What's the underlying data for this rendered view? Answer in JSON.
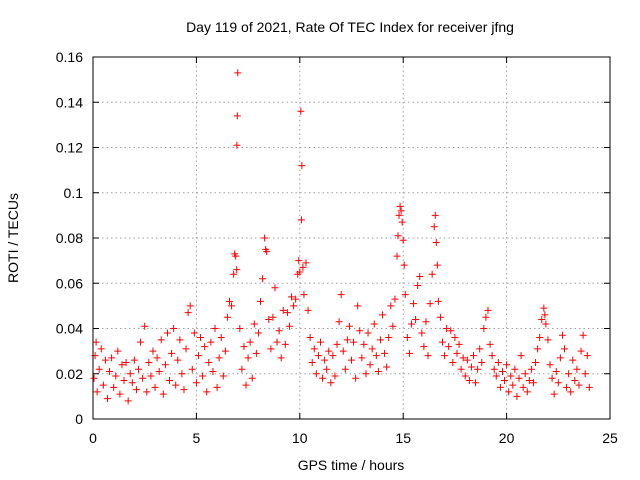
{
  "chart_data": {
    "type": "scatter",
    "title": "Day 119 of 2021, Rate Of TEC Index for receiver jfng",
    "xlabel": "GPS time / hours",
    "ylabel": "ROTI / TECUs",
    "xlim": [
      0,
      25
    ],
    "ylim": [
      0,
      0.16
    ],
    "xticks": [
      0,
      5,
      10,
      15,
      20,
      25
    ],
    "xtick_labels": [
      "0",
      "5",
      "10",
      "15",
      "20",
      "25"
    ],
    "yticks": [
      0,
      0.02,
      0.04,
      0.06,
      0.08,
      0.1,
      0.12,
      0.14,
      0.16
    ],
    "ytick_labels": [
      "0",
      "0.02",
      "0.04",
      "0.06",
      "0.08",
      "0.1",
      "0.12",
      "0.14",
      "0.16"
    ],
    "grid": true,
    "marker": "+",
    "color": "#ff0000",
    "series": [
      {
        "name": "ROTI",
        "points": [
          [
            0.05,
            0.018
          ],
          [
            0.1,
            0.028
          ],
          [
            0.15,
            0.034
          ],
          [
            0.2,
            0.012
          ],
          [
            0.3,
            0.022
          ],
          [
            0.4,
            0.031
          ],
          [
            0.5,
            0.015
          ],
          [
            0.6,
            0.026
          ],
          [
            0.7,
            0.009
          ],
          [
            0.8,
            0.021
          ],
          [
            0.9,
            0.027
          ],
          [
            1.0,
            0.014
          ],
          [
            1.1,
            0.019
          ],
          [
            1.2,
            0.03
          ],
          [
            1.3,
            0.011
          ],
          [
            1.4,
            0.024
          ],
          [
            1.5,
            0.017
          ],
          [
            1.6,
            0.025
          ],
          [
            1.7,
            0.008
          ],
          [
            1.8,
            0.02
          ],
          [
            1.9,
            0.016
          ],
          [
            2.0,
            0.026
          ],
          [
            2.1,
            0.013
          ],
          [
            2.2,
            0.022
          ],
          [
            2.3,
            0.034
          ],
          [
            2.4,
            0.018
          ],
          [
            2.5,
            0.041
          ],
          [
            2.6,
            0.012
          ],
          [
            2.7,
            0.025
          ],
          [
            2.8,
            0.019
          ],
          [
            2.9,
            0.03
          ],
          [
            3.0,
            0.014
          ],
          [
            3.1,
            0.027
          ],
          [
            3.2,
            0.021
          ],
          [
            3.3,
            0.035
          ],
          [
            3.4,
            0.011
          ],
          [
            3.5,
            0.024
          ],
          [
            3.6,
            0.038
          ],
          [
            3.7,
            0.017
          ],
          [
            3.8,
            0.029
          ],
          [
            3.9,
            0.04
          ],
          [
            4.0,
            0.015
          ],
          [
            4.1,
            0.026
          ],
          [
            4.2,
            0.035
          ],
          [
            4.3,
            0.02
          ],
          [
            4.4,
            0.013
          ],
          [
            4.5,
            0.031
          ],
          [
            4.6,
            0.047
          ],
          [
            4.7,
            0.05
          ],
          [
            4.8,
            0.022
          ],
          [
            4.9,
            0.038
          ],
          [
            5.0,
            0.016
          ],
          [
            5.1,
            0.028
          ],
          [
            5.2,
            0.036
          ],
          [
            5.3,
            0.019
          ],
          [
            5.4,
            0.032
          ],
          [
            5.5,
            0.012
          ],
          [
            5.6,
            0.025
          ],
          [
            5.7,
            0.034
          ],
          [
            5.8,
            0.021
          ],
          [
            5.9,
            0.04
          ],
          [
            6.0,
            0.014
          ],
          [
            6.1,
            0.027
          ],
          [
            6.2,
            0.036
          ],
          [
            6.3,
            0.019
          ],
          [
            6.4,
            0.03
          ],
          [
            6.5,
            0.045
          ],
          [
            6.6,
            0.052
          ],
          [
            6.7,
            0.05
          ],
          [
            6.8,
            0.064
          ],
          [
            6.85,
            0.073
          ],
          [
            6.9,
            0.072
          ],
          [
            6.95,
            0.066
          ],
          [
            7.0,
            0.153
          ],
          [
            6.98,
            0.134
          ],
          [
            6.96,
            0.121
          ],
          [
            7.1,
            0.04
          ],
          [
            7.2,
            0.022
          ],
          [
            7.3,
            0.032
          ],
          [
            7.4,
            0.015
          ],
          [
            7.5,
            0.027
          ],
          [
            7.6,
            0.034
          ],
          [
            7.7,
            0.018
          ],
          [
            7.8,
            0.042
          ],
          [
            7.9,
            0.029
          ],
          [
            8.0,
            0.038
          ],
          [
            8.1,
            0.052
          ],
          [
            8.2,
            0.062
          ],
          [
            8.3,
            0.08
          ],
          [
            8.35,
            0.075
          ],
          [
            8.4,
            0.074
          ],
          [
            8.5,
            0.044
          ],
          [
            8.6,
            0.031
          ],
          [
            8.7,
            0.045
          ],
          [
            8.8,
            0.058
          ],
          [
            8.9,
            0.034
          ],
          [
            9.0,
            0.039
          ],
          [
            9.1,
            0.027
          ],
          [
            9.2,
            0.048
          ],
          [
            9.3,
            0.033
          ],
          [
            9.4,
            0.047
          ],
          [
            9.5,
            0.041
          ],
          [
            9.6,
            0.054
          ],
          [
            9.7,
            0.05
          ],
          [
            9.8,
            0.053
          ],
          [
            9.9,
            0.064
          ],
          [
            9.95,
            0.07
          ],
          [
            10.0,
            0.065
          ],
          [
            10.05,
            0.136
          ],
          [
            10.1,
            0.112
          ],
          [
            10.08,
            0.088
          ],
          [
            10.15,
            0.067
          ],
          [
            10.2,
            0.055
          ],
          [
            10.3,
            0.069
          ],
          [
            10.4,
            0.048
          ],
          [
            10.5,
            0.036
          ],
          [
            10.6,
            0.025
          ],
          [
            10.7,
            0.031
          ],
          [
            10.8,
            0.02
          ],
          [
            10.9,
            0.028
          ],
          [
            11.0,
            0.034
          ],
          [
            11.1,
            0.018
          ],
          [
            11.2,
            0.026
          ],
          [
            11.3,
            0.022
          ],
          [
            11.4,
            0.03
          ],
          [
            11.5,
            0.016
          ],
          [
            11.6,
            0.028
          ],
          [
            11.7,
            0.019
          ],
          [
            11.8,
            0.033
          ],
          [
            11.9,
            0.043
          ],
          [
            12.0,
            0.055
          ],
          [
            12.1,
            0.03
          ],
          [
            12.2,
            0.022
          ],
          [
            12.3,
            0.035
          ],
          [
            12.4,
            0.041
          ],
          [
            12.5,
            0.026
          ],
          [
            12.6,
            0.034
          ],
          [
            12.7,
            0.018
          ],
          [
            12.8,
            0.05
          ],
          [
            12.9,
            0.039
          ],
          [
            13.0,
            0.027
          ],
          [
            13.1,
            0.033
          ],
          [
            13.2,
            0.02
          ],
          [
            13.3,
            0.038
          ],
          [
            13.4,
            0.024
          ],
          [
            13.5,
            0.031
          ],
          [
            13.6,
            0.042
          ],
          [
            13.7,
            0.028
          ],
          [
            13.8,
            0.021
          ],
          [
            13.9,
            0.035
          ],
          [
            14.0,
            0.046
          ],
          [
            14.1,
            0.029
          ],
          [
            14.2,
            0.023
          ],
          [
            14.3,
            0.036
          ],
          [
            14.4,
            0.05
          ],
          [
            14.5,
            0.041
          ],
          [
            14.6,
            0.053
          ],
          [
            14.7,
            0.072
          ],
          [
            14.75,
            0.081
          ],
          [
            14.8,
            0.09
          ],
          [
            14.85,
            0.094
          ],
          [
            14.9,
            0.092
          ],
          [
            14.95,
            0.087
          ],
          [
            15.0,
            0.079
          ],
          [
            15.05,
            0.068
          ],
          [
            15.1,
            0.055
          ],
          [
            15.2,
            0.036
          ],
          [
            15.3,
            0.029
          ],
          [
            15.4,
            0.042
          ],
          [
            15.5,
            0.051
          ],
          [
            15.6,
            0.044
          ],
          [
            15.7,
            0.059
          ],
          [
            15.8,
            0.063
          ],
          [
            15.9,
            0.038
          ],
          [
            16.0,
            0.032
          ],
          [
            16.1,
            0.043
          ],
          [
            16.2,
            0.028
          ],
          [
            16.3,
            0.051
          ],
          [
            16.4,
            0.064
          ],
          [
            16.5,
            0.085
          ],
          [
            16.55,
            0.09
          ],
          [
            16.6,
            0.078
          ],
          [
            16.65,
            0.068
          ],
          [
            16.7,
            0.052
          ],
          [
            16.8,
            0.045
          ],
          [
            16.9,
            0.034
          ],
          [
            17.0,
            0.028
          ],
          [
            17.1,
            0.04
          ],
          [
            17.2,
            0.032
          ],
          [
            17.3,
            0.039
          ],
          [
            17.4,
            0.025
          ],
          [
            17.5,
            0.036
          ],
          [
            17.6,
            0.029
          ],
          [
            17.7,
            0.033
          ],
          [
            17.8,
            0.022
          ],
          [
            17.9,
            0.027
          ],
          [
            18.0,
            0.019
          ],
          [
            18.1,
            0.026
          ],
          [
            18.2,
            0.017
          ],
          [
            18.3,
            0.023
          ],
          [
            18.4,
            0.028
          ],
          [
            18.5,
            0.016
          ],
          [
            18.6,
            0.022
          ],
          [
            18.7,
            0.031
          ],
          [
            18.8,
            0.025
          ],
          [
            18.9,
            0.04
          ],
          [
            19.0,
            0.045
          ],
          [
            19.1,
            0.048
          ],
          [
            19.2,
            0.033
          ],
          [
            19.3,
            0.028
          ],
          [
            19.4,
            0.022
          ],
          [
            19.5,
            0.019
          ],
          [
            19.6,
            0.025
          ],
          [
            19.7,
            0.014
          ],
          [
            19.8,
            0.021
          ],
          [
            19.9,
            0.017
          ],
          [
            20.0,
            0.024
          ],
          [
            20.1,
            0.012
          ],
          [
            20.2,
            0.019
          ],
          [
            20.3,
            0.015
          ],
          [
            20.4,
            0.022
          ],
          [
            20.5,
            0.01
          ],
          [
            20.6,
            0.018
          ],
          [
            20.7,
            0.028
          ],
          [
            20.8,
            0.014
          ],
          [
            20.9,
            0.02
          ],
          [
            21.0,
            0.012
          ],
          [
            21.1,
            0.017
          ],
          [
            21.2,
            0.022
          ],
          [
            21.3,
            0.016
          ],
          [
            21.4,
            0.025
          ],
          [
            21.5,
            0.031
          ],
          [
            21.6,
            0.036
          ],
          [
            21.7,
            0.044
          ],
          [
            21.8,
            0.049
          ],
          [
            21.85,
            0.046
          ],
          [
            21.9,
            0.042
          ],
          [
            22.0,
            0.035
          ],
          [
            22.1,
            0.024
          ],
          [
            22.2,
            0.018
          ],
          [
            22.3,
            0.011
          ],
          [
            22.4,
            0.021
          ],
          [
            22.5,
            0.016
          ],
          [
            22.6,
            0.027
          ],
          [
            22.7,
            0.037
          ],
          [
            22.8,
            0.031
          ],
          [
            22.9,
            0.014
          ],
          [
            23.0,
            0.02
          ],
          [
            23.1,
            0.012
          ],
          [
            23.2,
            0.026
          ],
          [
            23.3,
            0.017
          ],
          [
            23.4,
            0.022
          ],
          [
            23.5,
            0.015
          ],
          [
            23.6,
            0.03
          ],
          [
            23.7,
            0.037
          ],
          [
            23.8,
            0.02
          ],
          [
            23.9,
            0.028
          ],
          [
            24.0,
            0.014
          ]
        ]
      }
    ]
  }
}
